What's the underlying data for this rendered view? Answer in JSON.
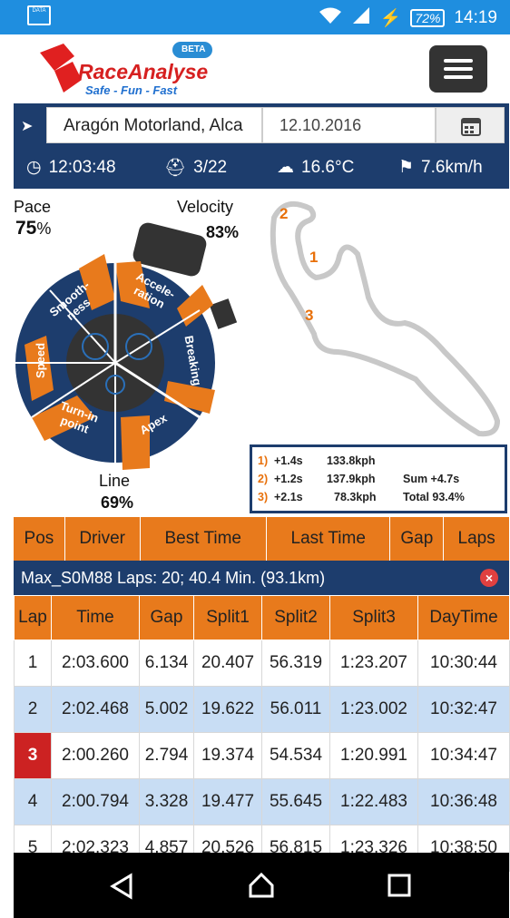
{
  "status_bar": {
    "sim_label": "DATA",
    "battery": "72%",
    "time": "14:19"
  },
  "app": {
    "logo_name": "RaceAnalyse",
    "logo_tagline": "Safe - Fun - Fast",
    "beta_badge": "BETA"
  },
  "location": {
    "value": "Aragón Motorland, Alca",
    "date": "12.10.2016"
  },
  "info": {
    "time": "12:03:48",
    "laps": "3/22",
    "temperature": "16.6°C",
    "wind": "7.6km/h"
  },
  "gauge": {
    "pace_label": "Pace",
    "pace_value": "75",
    "pace_unit": "%",
    "velocity_label": "Velocity",
    "velocity_value": "83%",
    "line_label": "Line",
    "line_value": "69%",
    "segments": [
      "Accele-",
      "ration",
      "Breaking",
      "Apex",
      "Turn-in",
      "point",
      "Speed",
      "Smooth-",
      "ness"
    ]
  },
  "track": {
    "marker_1": "1",
    "marker_2": "2",
    "marker_3": "3"
  },
  "sectors_legend": {
    "rows": [
      {
        "n": "1)",
        "gap": "+1.4s",
        "speed": "133.8kph",
        "extra": ""
      },
      {
        "n": "2)",
        "gap": "+1.2s",
        "speed": "137.9kph",
        "extra": "Sum  +4.7s"
      },
      {
        "n": "3)",
        "gap": "+2.1s",
        "speed": "78.3kph",
        "extra": "Total  93.4%"
      }
    ]
  },
  "ranking_header": [
    "Pos",
    "Driver",
    "Best Time",
    "Last Time",
    "Gap",
    "Laps"
  ],
  "session": {
    "text": "Max_S0M88 Laps: 20; 40.4 Min. (93.1km)",
    "close": "×"
  },
  "lap_table": {
    "headers": [
      "Lap",
      "Time",
      "Gap",
      "Split1",
      "Split2",
      "Split3",
      "DayTime"
    ],
    "rows": [
      [
        "1",
        "2:03.600",
        "6.134",
        "20.407",
        "56.319",
        "1:23.207",
        "10:30:44"
      ],
      [
        "2",
        "2:02.468",
        "5.002",
        "19.622",
        "56.011",
        "1:23.002",
        "10:32:47"
      ],
      [
        "3",
        "2:00.260",
        "2.794",
        "19.374",
        "54.534",
        "1:20.991",
        "10:34:47"
      ],
      [
        "4",
        "2:00.794",
        "3.328",
        "19.477",
        "55.645",
        "1:22.483",
        "10:36:48"
      ],
      [
        "5",
        "2:02.323",
        "4.857",
        "20.526",
        "56.815",
        "1:23.326",
        "10:38:50"
      ]
    ]
  },
  "colors": {
    "accent": "#e87a1c",
    "navy": "#1d3d6d",
    "statusbar": "#1f8edf",
    "best_lap": "#cc2222",
    "row_alt": "#c8ddf4"
  }
}
